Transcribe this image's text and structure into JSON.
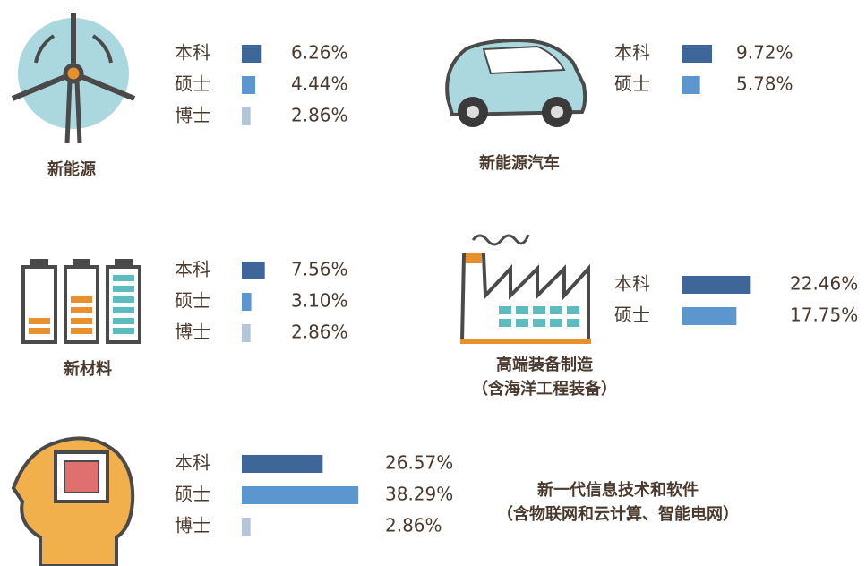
{
  "chart_data": [
    {
      "type": "bar",
      "title": "新能源",
      "categories": [
        "本科",
        "硕士",
        "博士"
      ],
      "values": [
        6.26,
        4.44,
        2.86
      ],
      "value_labels": [
        "6.26%",
        "4.44%",
        "2.86%"
      ],
      "colors": [
        "#3f6699",
        "#5b96cf",
        "#b5c4d8"
      ]
    },
    {
      "type": "bar",
      "title": "新能源汽车",
      "categories": [
        "本科",
        "硕士"
      ],
      "values": [
        9.72,
        5.78
      ],
      "value_labels": [
        "9.72%",
        "5.78%"
      ],
      "colors": [
        "#3f6699",
        "#5b96cf"
      ]
    },
    {
      "type": "bar",
      "title": "新材料",
      "categories": [
        "本科",
        "硕士",
        "博士"
      ],
      "values": [
        7.56,
        3.1,
        2.86
      ],
      "value_labels": [
        "7.56%",
        "3.10%",
        "2.86%"
      ],
      "colors": [
        "#3f6699",
        "#5b96cf",
        "#b5c4d8"
      ]
    },
    {
      "type": "bar",
      "title": "高端装备制造",
      "subtitle": "（含海洋工程装备）",
      "categories": [
        "本科",
        "硕士"
      ],
      "values": [
        22.46,
        17.75
      ],
      "value_labels": [
        "22.46%",
        "17.75%"
      ],
      "colors": [
        "#3f6699",
        "#5b96cf"
      ]
    },
    {
      "type": "bar",
      "title": "新一代信息技术和软件",
      "subtitle": "（含物联网和云计算、智能电网）",
      "categories": [
        "本科",
        "硕士",
        "博士"
      ],
      "values": [
        26.57,
        38.29,
        2.86
      ],
      "value_labels": [
        "26.57%",
        "38.29%",
        "2.86%"
      ],
      "colors": [
        "#3f6699",
        "#5b96cf",
        "#b5c4d8"
      ]
    }
  ]
}
